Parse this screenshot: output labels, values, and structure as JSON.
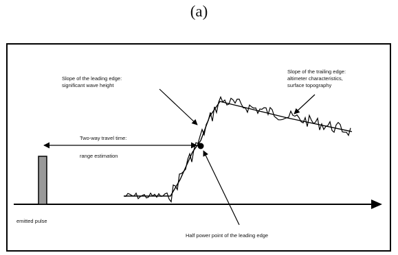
{
  "caption": "(a)",
  "labels": {
    "leading_slope_1": "Slope of the leading edge:",
    "leading_slope_2": "significant wave height",
    "trailing_slope_1": "Slope of the trailing edge:",
    "trailing_slope_2": "altimeter characteristics,",
    "trailing_slope_3": "surface topography",
    "travel_time_1": "Two-way travel time:",
    "travel_time_2": "range estimation",
    "emitted_pulse": "emitted pulse",
    "half_power": "Half power point of the leading edge"
  },
  "colors": {
    "line": "#000000",
    "pulse_fill": "#999999"
  }
}
